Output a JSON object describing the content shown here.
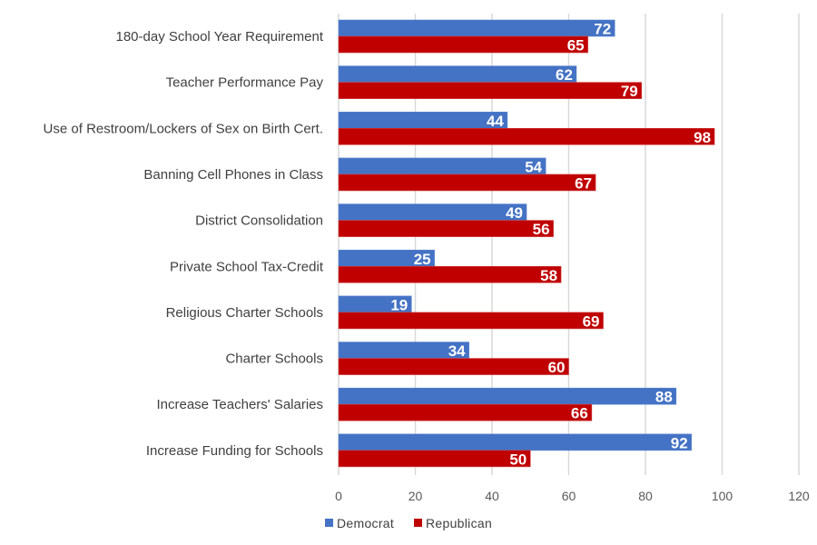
{
  "chart_data": {
    "type": "bar",
    "orientation": "horizontal",
    "title": "",
    "xlabel": "",
    "ylabel": "",
    "xlim": [
      0,
      120
    ],
    "xticks": [
      0,
      20,
      40,
      60,
      80,
      100,
      120
    ],
    "grid": true,
    "legend_position": "bottom",
    "categories": [
      "180-day School Year Requirement",
      "Teacher Performance Pay",
      "Use of Restroom/Lockers of Sex on Birth Cert.",
      "Banning Cell Phones in Class",
      "District Consolidation",
      "Private School Tax-Credit",
      "Religious Charter Schools",
      "Charter Schools",
      "Increase Teachers' Salaries",
      "Increase Funding for Schools"
    ],
    "series": [
      {
        "name": "Democrat",
        "color": "#4472C4",
        "values": [
          72,
          62,
          44,
          54,
          49,
          25,
          19,
          34,
          88,
          92
        ]
      },
      {
        "name": "Republican",
        "color": "#C00000",
        "values": [
          65,
          79,
          98,
          67,
          56,
          58,
          69,
          60,
          66,
          50
        ]
      }
    ]
  }
}
